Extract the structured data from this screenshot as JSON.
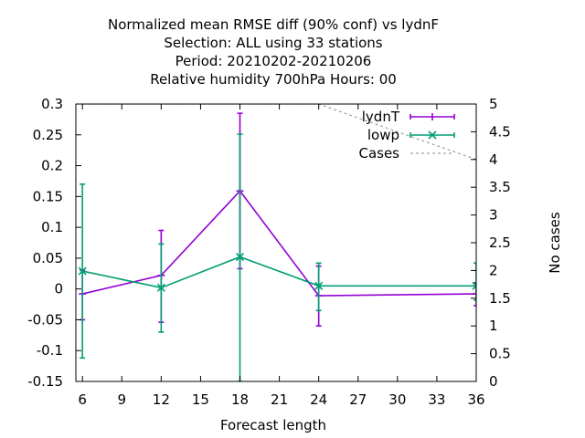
{
  "chart_data": {
    "type": "line",
    "title_lines": [
      "Normalized mean RMSE diff (90% conf) vs lydnF",
      "Selection: ALL using    33 stations",
      "Period: 20210202-20210206",
      "Relative humidity 700hPa   Hours:  00"
    ],
    "xlabel": "Forecast length",
    "ylabel": "",
    "y2label": "No cases",
    "xlim": [
      5.5,
      36
    ],
    "ylim": [
      -0.15,
      0.3
    ],
    "y2lim": [
      0,
      5
    ],
    "xticks": [
      6,
      9,
      12,
      15,
      18,
      21,
      24,
      27,
      30,
      33,
      36
    ],
    "yticks": [
      -0.15,
      -0.1,
      -0.05,
      0,
      0.05,
      0.1,
      0.15,
      0.2,
      0.25,
      0.3
    ],
    "ytick_labels": [
      "-0.15",
      "-0.1",
      "-0.05",
      "0",
      "0.05",
      "0.1",
      "0.15",
      "0.2",
      "0.25",
      "0.3"
    ],
    "y2ticks": [
      0,
      0.5,
      1,
      1.5,
      2,
      2.5,
      3,
      3.5,
      4,
      4.5,
      5
    ],
    "y2tick_labels": [
      "0",
      "0.5",
      "1",
      "1.5",
      "2",
      "2.5",
      "3",
      "3.5",
      "4",
      "4.5",
      "5"
    ],
    "legend_position": "top-right",
    "grid": false,
    "series": [
      {
        "name": "lydnT",
        "color": "#9400d3",
        "marker": "plus",
        "axis": "y",
        "x": [
          6,
          12,
          18,
          24,
          36
        ],
        "y": [
          -0.008,
          0.022,
          0.159,
          -0.011,
          -0.008
        ],
        "err_low": [
          -0.05,
          -0.054,
          0.033,
          -0.06,
          -0.027
        ],
        "err_high": [
          0.03,
          0.095,
          0.285,
          0.037,
          0.01
        ]
      },
      {
        "name": "lowp",
        "color": "#009e73",
        "marker": "x",
        "axis": "y",
        "x": [
          6,
          12,
          18,
          24,
          36
        ],
        "y": [
          0.029,
          0.002,
          0.052,
          0.005,
          0.005
        ],
        "err_low": [
          -0.112,
          -0.07,
          -0.15,
          -0.035,
          -0.018
        ],
        "err_high": [
          0.17,
          0.073,
          0.251,
          0.042,
          0.042
        ]
      },
      {
        "name": "Cases",
        "color": "#a0a0a0",
        "style": "dashed",
        "axis": "y2",
        "x": [
          6,
          24,
          36
        ],
        "y": [
          5,
          5,
          4
        ]
      }
    ]
  }
}
